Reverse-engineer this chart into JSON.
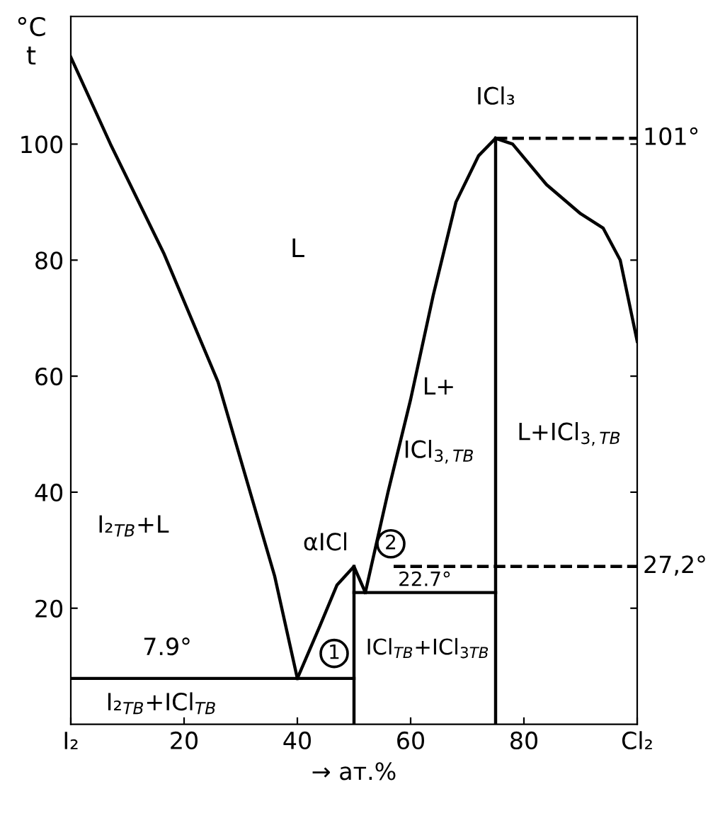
{
  "chart_data": {
    "type": "line",
    "ylabel": "°C\nt",
    "xlabel": "→ ат.%",
    "xlim": [
      0,
      100
    ],
    "ylim": [
      0,
      122
    ],
    "xticks": [
      {
        "value": 0,
        "label": "I₂"
      },
      20,
      40,
      60,
      80,
      {
        "value": 100,
        "label": "Cl₂"
      }
    ],
    "yticks": [
      20,
      40,
      60,
      80,
      100
    ],
    "grid": false,
    "legend": false,
    "marker": "none",
    "line_style": "solid",
    "series": [
      {
        "color": "#000000",
        "x": [
          0,
          7,
          16.5,
          26,
          36,
          40
        ],
        "values": [
          115,
          100,
          81,
          59,
          25.5,
          7.9
        ]
      },
      {
        "color": "#000000",
        "x": [
          40,
          44,
          47,
          50,
          52
        ],
        "values": [
          7.9,
          17,
          24,
          27.2,
          22.7
        ]
      },
      {
        "color": "#000000",
        "x": [
          52,
          56,
          60,
          64,
          68,
          72,
          75
        ],
        "values": [
          22.7,
          40,
          56,
          74,
          90,
          98,
          101
        ]
      },
      {
        "color": "#000000",
        "x": [
          75,
          78,
          84,
          90,
          94,
          97,
          100
        ],
        "values": [
          101,
          100,
          93,
          88,
          85.5,
          80,
          66
        ]
      },
      {
        "color": "#000000",
        "x": [
          0,
          50
        ],
        "values": [
          7.9,
          7.9
        ]
      },
      {
        "color": "#000000",
        "x": [
          50,
          75
        ],
        "values": [
          22.7,
          22.7
        ]
      },
      {
        "color": "#000000",
        "x": [
          50,
          50
        ],
        "values": [
          0,
          27.2
        ]
      },
      {
        "color": "#000000",
        "x": [
          75,
          75
        ],
        "values": [
          0,
          101
        ]
      },
      {
        "color": "#000000",
        "x": [
          75,
          100
        ],
        "values": [
          101,
          101
        ],
        "line_style": "dashed"
      },
      {
        "color": "#000000",
        "x": [
          57,
          100
        ],
        "values": [
          27.2,
          27.2
        ],
        "line_style": "dashed"
      }
    ],
    "annotations": [
      "L",
      "I₂$_{ТВ}$+L",
      "αICl",
      "L+",
      "ICl$_{3,ТВ}$",
      "L+ICl$_{3,ТВ}$",
      "ICl₃",
      "7.9°",
      "22.7°",
      "I₂$_{ТВ}$+ICl$_{ТВ}$",
      "ICl$_{ТВ}$+ICl$_{3ТВ}$",
      "1",
      "2",
      {
        "text": "101°",
        "x": 101,
        "y": 101
      },
      {
        "text": "27,2°",
        "x": 101,
        "y": 27.2
      }
    ]
  }
}
